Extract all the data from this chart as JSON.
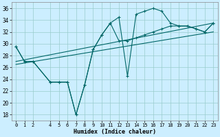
{
  "xlabel": "Humidex (Indice chaleur)",
  "background_color": "#cceeff",
  "grid_color": "#99cccc",
  "line_color": "#006666",
  "xlim": [
    -0.5,
    23.5
  ],
  "ylim": [
    17,
    37
  ],
  "xticks": [
    0,
    1,
    2,
    4,
    5,
    6,
    7,
    8,
    9,
    10,
    11,
    12,
    13,
    14,
    15,
    16,
    17,
    18,
    19,
    20,
    21,
    22,
    23
  ],
  "yticks": [
    18,
    20,
    22,
    24,
    26,
    28,
    30,
    32,
    34,
    36
  ],
  "series_with_markers": [
    {
      "x": [
        0,
        1,
        2,
        4,
        5,
        6,
        7,
        8,
        9,
        10,
        11,
        12,
        13,
        14,
        15,
        16,
        17,
        18,
        19,
        20,
        21,
        22,
        23
      ],
      "y": [
        29.5,
        27,
        27,
        23.5,
        23.5,
        23.5,
        18,
        23,
        29,
        31.5,
        33.5,
        34.5,
        24.5,
        35,
        35.5,
        36,
        35.5,
        33.5,
        33,
        33,
        32.5,
        32,
        33.5
      ]
    },
    {
      "x": [
        0,
        1,
        2,
        4,
        5,
        6,
        7,
        8,
        9,
        10,
        11,
        12,
        13,
        14,
        15,
        16,
        17,
        18,
        19,
        20,
        21,
        22,
        23
      ],
      "y": [
        29.5,
        27,
        27,
        23.5,
        23.5,
        23.5,
        18,
        23,
        29,
        31.5,
        33.5,
        30.5,
        30.5,
        31,
        31.5,
        32,
        32.5,
        33,
        33,
        33,
        32.5,
        32,
        33.5
      ]
    }
  ],
  "series_lines": [
    {
      "x": [
        0,
        23
      ],
      "y": [
        27.0,
        33.5
      ]
    },
    {
      "x": [
        0,
        23
      ],
      "y": [
        26.5,
        32.0
      ]
    }
  ]
}
